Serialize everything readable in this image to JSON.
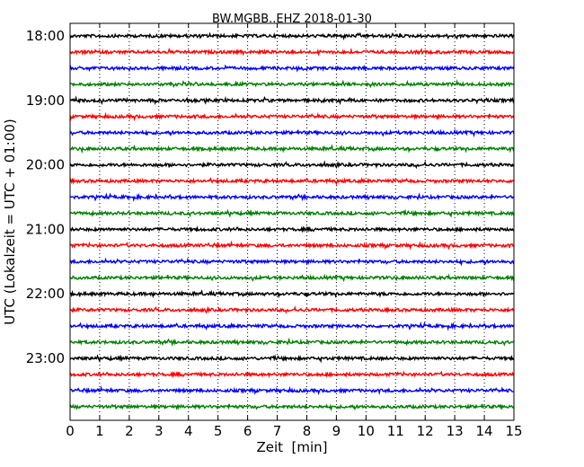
{
  "chart_data": {
    "type": "line",
    "title": "BW.MGBB..EHZ 2018-01-30",
    "xlabel": "Zeit  [min]",
    "ylabel": "UTC (Lokalzeit = UTC + 01:00)",
    "xlim": [
      0,
      15
    ],
    "x_ticks": [
      "0",
      "1",
      "2",
      "3",
      "4",
      "5",
      "6",
      "7",
      "8",
      "9",
      "10",
      "11",
      "12",
      "13",
      "14",
      "15"
    ],
    "y_ticks": [
      "18:00",
      "19:00",
      "20:00",
      "21:00",
      "22:00",
      "23:00"
    ],
    "grid": "vertical dotted",
    "trace_interval_minutes": 15,
    "trace_colors": [
      "#000000",
      "#ff0000",
      "#0000ff",
      "#008000"
    ],
    "traces": [
      {
        "start": "18:00",
        "color": "#000000"
      },
      {
        "start": "18:15",
        "color": "#ff0000"
      },
      {
        "start": "18:30",
        "color": "#0000ff"
      },
      {
        "start": "18:45",
        "color": "#008000"
      },
      {
        "start": "19:00",
        "color": "#000000"
      },
      {
        "start": "19:15",
        "color": "#ff0000"
      },
      {
        "start": "19:30",
        "color": "#0000ff"
      },
      {
        "start": "19:45",
        "color": "#008000"
      },
      {
        "start": "20:00",
        "color": "#000000"
      },
      {
        "start": "20:15",
        "color": "#ff0000"
      },
      {
        "start": "20:30",
        "color": "#0000ff"
      },
      {
        "start": "20:45",
        "color": "#008000"
      },
      {
        "start": "21:00",
        "color": "#000000"
      },
      {
        "start": "21:15",
        "color": "#ff0000"
      },
      {
        "start": "21:30",
        "color": "#0000ff"
      },
      {
        "start": "21:45",
        "color": "#008000"
      },
      {
        "start": "22:00",
        "color": "#000000"
      },
      {
        "start": "22:15",
        "color": "#ff0000"
      },
      {
        "start": "22:30",
        "color": "#0000ff"
      },
      {
        "start": "22:45",
        "color": "#008000"
      },
      {
        "start": "23:00",
        "color": "#000000"
      },
      {
        "start": "23:15",
        "color": "#ff0000"
      },
      {
        "start": "23:30",
        "color": "#0000ff"
      },
      {
        "start": "23:45",
        "color": "#008000"
      }
    ]
  }
}
